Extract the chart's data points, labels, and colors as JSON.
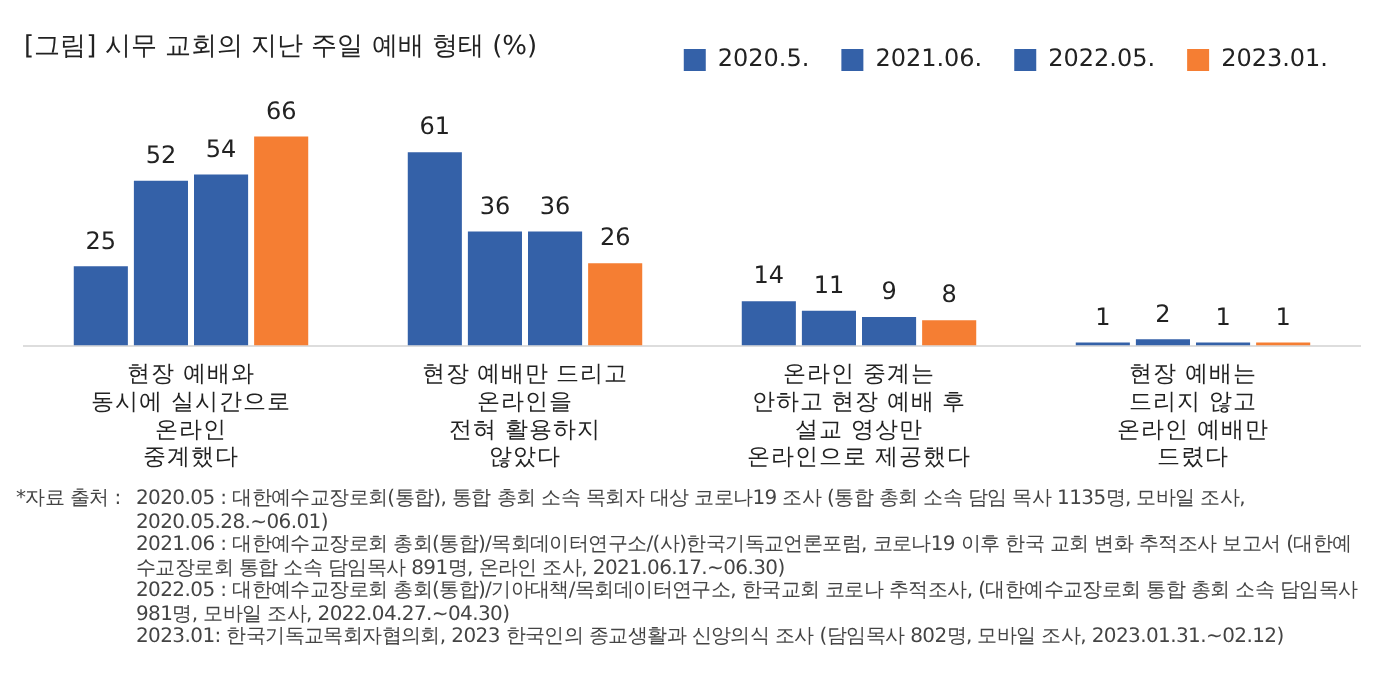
{
  "chart_data": {
    "type": "bar",
    "title": "[그림] 시무 교회의 지난 주일 예배 형태 (%)",
    "tick_labels": "x",
    "data_labels": true,
    "legend": "top right",
    "grid": false,
    "categories": [
      "현장 예배와\n동시에 실시간으로\n온라인\n중계했다",
      "현장 예배만 드리고\n온라인을\n전혀 활용하지\n않았다",
      "온라인 중계는\n안하고 현장 예배 후\n설교 영상만\n온라인으로 제공했다",
      "현장 예배는\n드리지 않고\n온라인 예배만\n드렸다"
    ],
    "series": [
      {
        "name": "2020.5.",
        "color": "#3461a8",
        "values": [
          25,
          61,
          14,
          1
        ]
      },
      {
        "name": "2021.06.",
        "color": "#3461a8",
        "values": [
          52,
          36,
          11,
          2
        ]
      },
      {
        "name": "2022.05.",
        "color": "#3461a8",
        "values": [
          54,
          36,
          9,
          1
        ]
      },
      {
        "name": "2023.01.",
        "color": "#f57e33",
        "values": [
          66,
          26,
          8,
          1
        ]
      }
    ],
    "annotations": [
      "*자료 출처 :",
      "2020.05 : 대한예수교장로회(통합), 통합 총회 소속 목회자 대상 코로나19 조사 (통합 총회 소속 담임 목사 1135명, 모바일 조사, 2020.05.28.~06.01)",
      "2021.06 : 대한예수교장로회 총회(통합)/목회데이터연구소/(사)한국기독교언론포럼, 코로나19 이후 한국 교회 변화 추적조사 보고서 (대한예수교장로회 통합 소속 담임목사 891명, 온라인 조사, 2021.06.17.~06.30)",
      "2022.05 : 대한예수교장로회 총회(통합)/기아대책/목회데이터연구소, 한국교회 코로나 추적조사, (대한예수교장로회 통합 총회 소속 담임목사 981명, 모바일 조사, 2022.04.27.~04.30)",
      "2023.01: 한국기독교목회자협의회, 2023 한국인의 종교생활과 신앙의식 조사 (담임목사 802명, 모바일 조사, 2023.01.31.~02.12)"
    ]
  }
}
